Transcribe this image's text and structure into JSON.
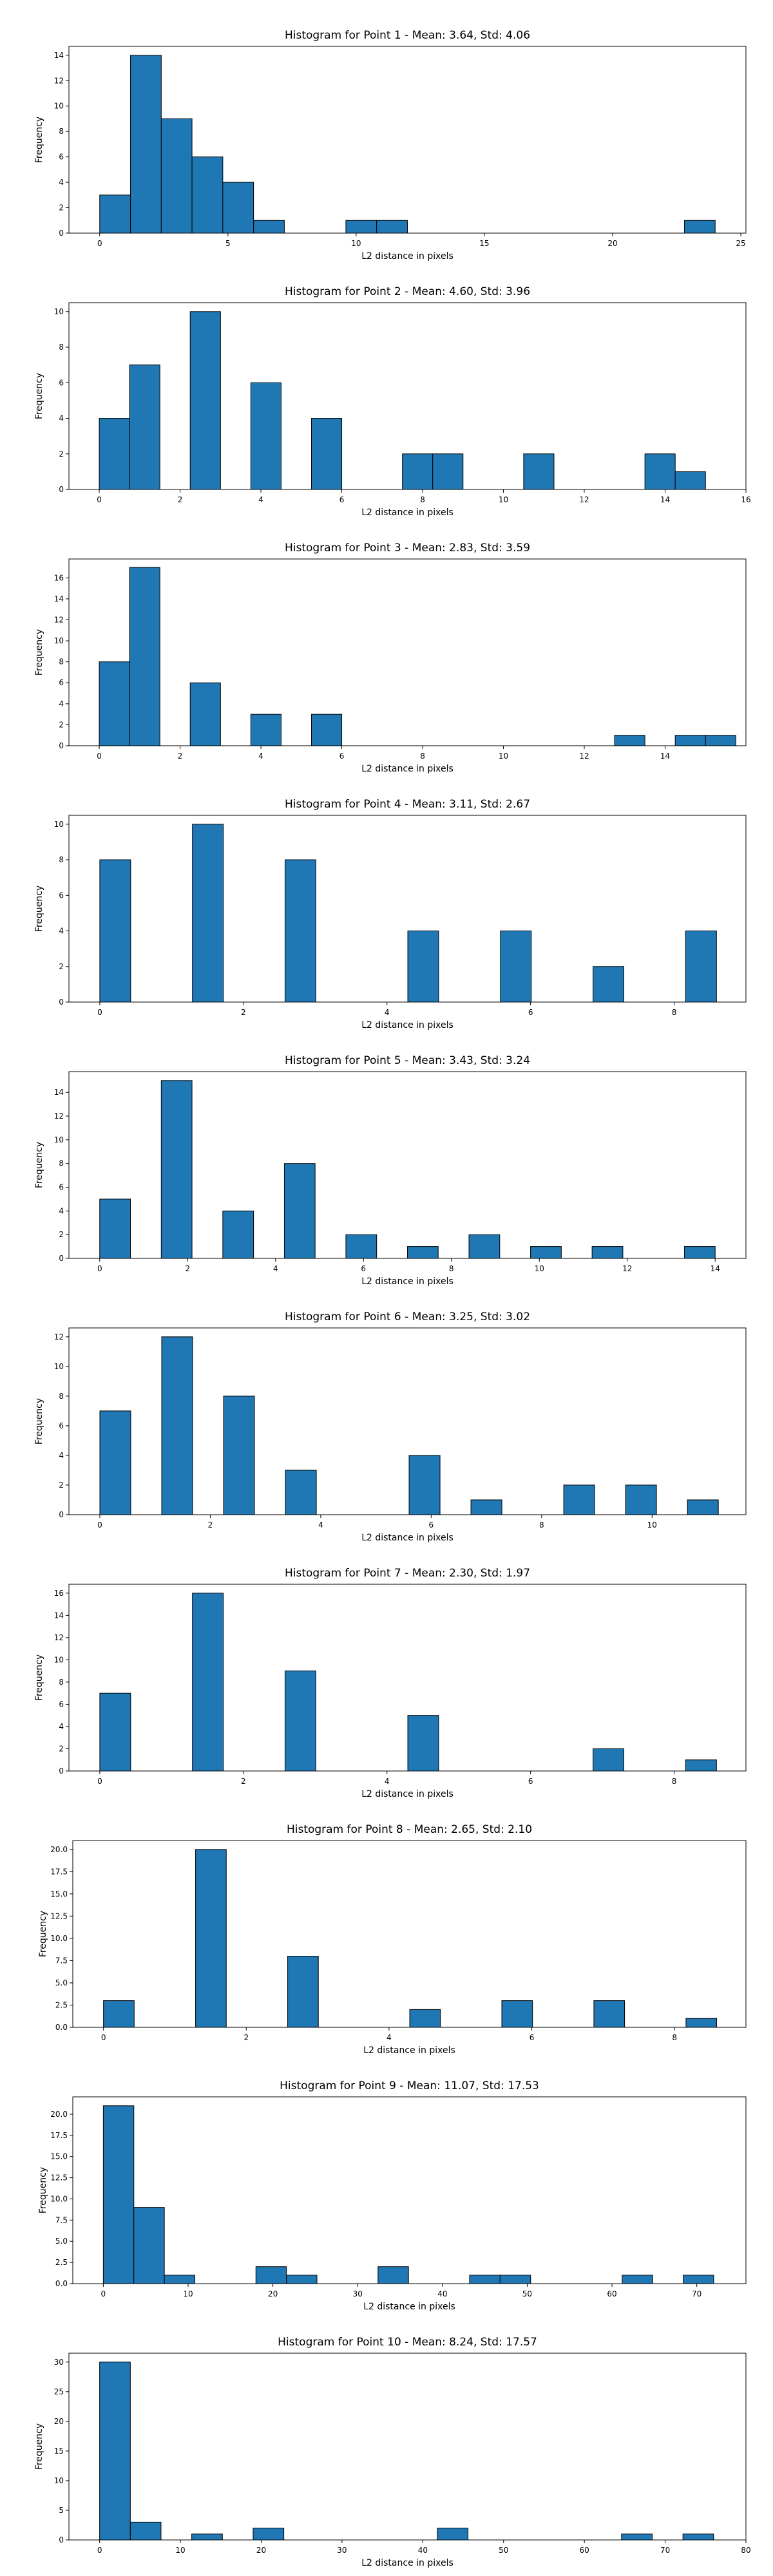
{
  "colors": {
    "bar_fill": "#1f77b4",
    "bar_edge": "#000000"
  },
  "chart_data": [
    {
      "type": "bar",
      "title": "Histogram for Point 1 - Mean: 3.64, Std: 4.06",
      "xlabel": "L2 distance in pixels",
      "ylabel": "Frequency",
      "xlim": [
        -1.2,
        25.2
      ],
      "ylim": [
        0,
        14.7
      ],
      "bin_width": 1.2,
      "bins": [
        {
          "x": 0,
          "v": 3
        },
        {
          "x": 1.2,
          "v": 14
        },
        {
          "x": 2.4,
          "v": 9
        },
        {
          "x": 3.6,
          "v": 6
        },
        {
          "x": 4.8,
          "v": 4
        },
        {
          "x": 6.0,
          "v": 1
        },
        {
          "x": 9.6,
          "v": 1
        },
        {
          "x": 10.8,
          "v": 1
        },
        {
          "x": 22.8,
          "v": 1
        }
      ],
      "xticks": [
        0,
        5,
        10,
        15,
        20,
        25
      ],
      "xtick_labels": [
        "0",
        "5",
        "10",
        "15",
        "20",
        "25"
      ],
      "yticks": [
        0,
        2,
        4,
        6,
        8,
        10,
        12,
        14
      ],
      "ytick_labels": [
        "0",
        "2",
        "4",
        "6",
        "8",
        "10",
        "12",
        "14"
      ],
      "grid": false
    },
    {
      "type": "bar",
      "title": "Histogram for Point 2 - Mean: 4.60, Std: 3.96",
      "xlabel": "L2 distance in pixels",
      "ylabel": "Frequency",
      "xlim": [
        -0.75,
        16.0
      ],
      "ylim": [
        0,
        10.5
      ],
      "bin_width": 0.75,
      "bins": [
        {
          "x": 0,
          "v": 4
        },
        {
          "x": 0.75,
          "v": 7
        },
        {
          "x": 2.25,
          "v": 10
        },
        {
          "x": 3.75,
          "v": 6
        },
        {
          "x": 5.25,
          "v": 4
        },
        {
          "x": 7.5,
          "v": 2
        },
        {
          "x": 8.25,
          "v": 2
        },
        {
          "x": 10.5,
          "v": 2
        },
        {
          "x": 13.5,
          "v": 2
        },
        {
          "x": 14.25,
          "v": 1
        }
      ],
      "xticks": [
        0,
        2,
        4,
        6,
        8,
        10,
        12,
        14,
        16
      ],
      "xtick_labels": [
        "0",
        "2",
        "4",
        "6",
        "8",
        "10",
        "12",
        "14",
        "16"
      ],
      "yticks": [
        0,
        2,
        4,
        6,
        8,
        10
      ],
      "ytick_labels": [
        "0",
        "2",
        "4",
        "6",
        "8",
        "10"
      ],
      "grid": false
    },
    {
      "type": "bar",
      "title": "Histogram for Point 3 - Mean: 2.83, Std: 3.59",
      "xlabel": "L2 distance in pixels",
      "ylabel": "Frequency",
      "xlim": [
        -0.75,
        16.0
      ],
      "ylim": [
        0,
        17.8
      ],
      "bin_width": 0.75,
      "bins": [
        {
          "x": 0,
          "v": 8
        },
        {
          "x": 0.75,
          "v": 17
        },
        {
          "x": 2.25,
          "v": 6
        },
        {
          "x": 3.75,
          "v": 3
        },
        {
          "x": 5.25,
          "v": 3
        },
        {
          "x": 12.75,
          "v": 1
        },
        {
          "x": 14.25,
          "v": 1
        },
        {
          "x": 15.0,
          "v": 1
        }
      ],
      "xticks": [
        0,
        2,
        4,
        6,
        8,
        10,
        12,
        14
      ],
      "xtick_labels": [
        "0",
        "2",
        "4",
        "6",
        "8",
        "10",
        "12",
        "14"
      ],
      "yticks": [
        0,
        2,
        4,
        6,
        8,
        10,
        12,
        14,
        16
      ],
      "ytick_labels": [
        "0",
        "2",
        "4",
        "6",
        "8",
        "10",
        "12",
        "14",
        "16"
      ],
      "grid": false
    },
    {
      "type": "bar",
      "title": "Histogram for Point 4 - Mean: 3.11, Std: 2.67",
      "xlabel": "L2 distance in pixels",
      "ylabel": "Frequency",
      "xlim": [
        -0.43,
        9.0
      ],
      "ylim": [
        0,
        10.5
      ],
      "bin_width": 0.43,
      "bins": [
        {
          "x": 0,
          "v": 8
        },
        {
          "x": 1.29,
          "v": 10
        },
        {
          "x": 2.58,
          "v": 8
        },
        {
          "x": 4.29,
          "v": 4
        },
        {
          "x": 5.58,
          "v": 4
        },
        {
          "x": 6.87,
          "v": 2
        },
        {
          "x": 8.16,
          "v": 4
        }
      ],
      "xticks": [
        0,
        2,
        4,
        6,
        8
      ],
      "xtick_labels": [
        "0",
        "2",
        "4",
        "6",
        "8"
      ],
      "yticks": [
        0,
        2,
        4,
        6,
        8,
        10
      ],
      "ytick_labels": [
        "0",
        "2",
        "4",
        "6",
        "8",
        "10"
      ],
      "grid": false
    },
    {
      "type": "bar",
      "title": "Histogram for Point 5 - Mean: 3.43, Std: 3.24",
      "xlabel": "L2 distance in pixels",
      "ylabel": "Frequency",
      "xlim": [
        -0.7,
        14.7
      ],
      "ylim": [
        0,
        15.75
      ],
      "bin_width": 0.7,
      "bins": [
        {
          "x": 0,
          "v": 5
        },
        {
          "x": 1.4,
          "v": 15
        },
        {
          "x": 2.8,
          "v": 4
        },
        {
          "x": 4.2,
          "v": 8
        },
        {
          "x": 5.6,
          "v": 2
        },
        {
          "x": 7.0,
          "v": 1
        },
        {
          "x": 8.4,
          "v": 2
        },
        {
          "x": 9.8,
          "v": 1
        },
        {
          "x": 11.2,
          "v": 1
        },
        {
          "x": 13.3,
          "v": 1
        }
      ],
      "xticks": [
        0,
        2,
        4,
        6,
        8,
        10,
        12,
        14
      ],
      "xtick_labels": [
        "0",
        "2",
        "4",
        "6",
        "8",
        "10",
        "12",
        "14"
      ],
      "yticks": [
        0,
        2,
        4,
        6,
        8,
        10,
        12,
        14
      ],
      "ytick_labels": [
        "0",
        "2",
        "4",
        "6",
        "8",
        "10",
        "12",
        "14"
      ],
      "grid": false
    },
    {
      "type": "bar",
      "title": "Histogram for Point 6 - Mean: 3.25, Std: 3.02",
      "xlabel": "L2 distance in pixels",
      "ylabel": "Frequency",
      "xlim": [
        -0.56,
        11.7
      ],
      "ylim": [
        0,
        12.6
      ],
      "bin_width": 0.56,
      "bins": [
        {
          "x": 0,
          "v": 7
        },
        {
          "x": 1.12,
          "v": 12
        },
        {
          "x": 2.24,
          "v": 8
        },
        {
          "x": 3.36,
          "v": 3
        },
        {
          "x": 5.6,
          "v": 4
        },
        {
          "x": 6.72,
          "v": 1
        },
        {
          "x": 8.4,
          "v": 2
        },
        {
          "x": 9.52,
          "v": 2
        },
        {
          "x": 10.64,
          "v": 1
        }
      ],
      "xticks": [
        0,
        2,
        4,
        6,
        8,
        10
      ],
      "xtick_labels": [
        "0",
        "2",
        "4",
        "6",
        "8",
        "10"
      ],
      "yticks": [
        0,
        2,
        4,
        6,
        8,
        10,
        12
      ],
      "ytick_labels": [
        "0",
        "2",
        "4",
        "6",
        "8",
        "10",
        "12"
      ],
      "grid": false
    },
    {
      "type": "bar",
      "title": "Histogram for Point 7 - Mean: 2.30, Std: 1.97",
      "xlabel": "L2 distance in pixels",
      "ylabel": "Frequency",
      "xlim": [
        -0.43,
        9.0
      ],
      "ylim": [
        0,
        16.8
      ],
      "bin_width": 0.43,
      "bins": [
        {
          "x": 0,
          "v": 7
        },
        {
          "x": 1.29,
          "v": 16
        },
        {
          "x": 2.58,
          "v": 9
        },
        {
          "x": 4.29,
          "v": 5
        },
        {
          "x": 6.87,
          "v": 2
        },
        {
          "x": 8.16,
          "v": 1
        }
      ],
      "xticks": [
        0,
        2,
        4,
        6,
        8
      ],
      "xtick_labels": [
        "0",
        "2",
        "4",
        "6",
        "8"
      ],
      "yticks": [
        0,
        2,
        4,
        6,
        8,
        10,
        12,
        14,
        16
      ],
      "ytick_labels": [
        "0",
        "2",
        "4",
        "6",
        "8",
        "10",
        "12",
        "14",
        "16"
      ],
      "grid": false
    },
    {
      "type": "bar",
      "title": "Histogram for Point 8 - Mean: 2.65, Std: 2.10",
      "xlabel": "L2 distance in pixels",
      "ylabel": "Frequency",
      "xlim": [
        -0.43,
        9.0
      ],
      "ylim": [
        0,
        21
      ],
      "bin_width": 0.43,
      "bins": [
        {
          "x": 0,
          "v": 3
        },
        {
          "x": 1.29,
          "v": 20
        },
        {
          "x": 2.58,
          "v": 8
        },
        {
          "x": 4.29,
          "v": 2
        },
        {
          "x": 5.58,
          "v": 3
        },
        {
          "x": 6.87,
          "v": 3
        },
        {
          "x": 8.16,
          "v": 1
        }
      ],
      "xticks": [
        0,
        2,
        4,
        6,
        8
      ],
      "xtick_labels": [
        "0",
        "2",
        "4",
        "6",
        "8"
      ],
      "yticks": [
        0,
        2.5,
        5,
        7.5,
        10,
        12.5,
        15,
        17.5,
        20
      ],
      "ytick_labels": [
        "0.0",
        "2.5",
        "5.0",
        "7.5",
        "10.0",
        "12.5",
        "15.0",
        "17.5",
        "20.0"
      ],
      "grid": false
    },
    {
      "type": "bar",
      "title": "Histogram for Point 9 - Mean: 11.07, Std: 17.53",
      "xlabel": "L2 distance in pixels",
      "ylabel": "Frequency",
      "xlim": [
        -3.6,
        75.8
      ],
      "ylim": [
        0,
        22.05
      ],
      "bin_width": 3.6,
      "bins": [
        {
          "x": 0,
          "v": 21
        },
        {
          "x": 3.6,
          "v": 9
        },
        {
          "x": 7.2,
          "v": 1
        },
        {
          "x": 18.0,
          "v": 2
        },
        {
          "x": 21.6,
          "v": 1
        },
        {
          "x": 32.4,
          "v": 2
        },
        {
          "x": 43.2,
          "v": 1
        },
        {
          "x": 46.8,
          "v": 1
        },
        {
          "x": 61.2,
          "v": 1
        },
        {
          "x": 68.4,
          "v": 1
        }
      ],
      "xticks": [
        0,
        10,
        20,
        30,
        40,
        50,
        60,
        70
      ],
      "xtick_labels": [
        "0",
        "10",
        "20",
        "30",
        "40",
        "50",
        "60",
        "70"
      ],
      "yticks": [
        0,
        2.5,
        5,
        7.5,
        10,
        12.5,
        15,
        17.5,
        20
      ],
      "ytick_labels": [
        "0.0",
        "2.5",
        "5.0",
        "7.5",
        "10.0",
        "12.5",
        "15.0",
        "17.5",
        "20.0"
      ],
      "grid": false
    },
    {
      "type": "bar",
      "title": "Histogram for Point 10 - Mean: 8.24, Std: 17.57",
      "xlabel": "L2 distance in pixels",
      "ylabel": "Frequency",
      "xlim": [
        -3.8,
        80.0
      ],
      "ylim": [
        0,
        31.5
      ],
      "bin_width": 3.8,
      "bins": [
        {
          "x": 0,
          "v": 30
        },
        {
          "x": 3.8,
          "v": 3
        },
        {
          "x": 11.4,
          "v": 1
        },
        {
          "x": 19.0,
          "v": 2
        },
        {
          "x": 41.8,
          "v": 2
        },
        {
          "x": 64.6,
          "v": 1
        },
        {
          "x": 72.2,
          "v": 1
        }
      ],
      "xticks": [
        0,
        10,
        20,
        30,
        40,
        50,
        60,
        70,
        80
      ],
      "xtick_labels": [
        "0",
        "10",
        "20",
        "30",
        "40",
        "50",
        "60",
        "70",
        "80"
      ],
      "yticks": [
        0,
        5,
        10,
        15,
        20,
        25,
        30
      ],
      "ytick_labels": [
        "0",
        "5",
        "10",
        "15",
        "20",
        "25",
        "30"
      ],
      "grid": false
    }
  ]
}
